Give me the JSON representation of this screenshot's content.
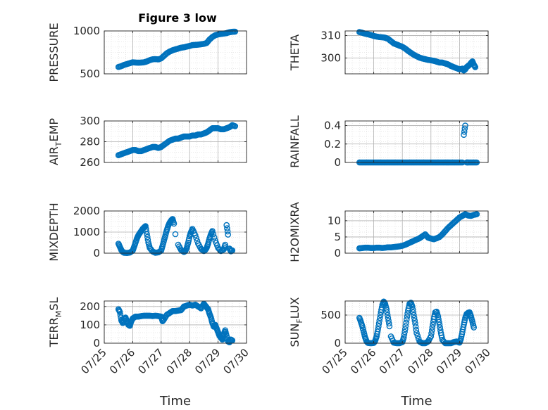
{
  "figure_title": "Figure 3 low",
  "colors": {
    "series": "#0072BD",
    "axis": "#262626",
    "grid": "#b0b0b0",
    "minor_grid": "#d6d6d6"
  },
  "chart_data": [
    {
      "type": "scatter",
      "ylabel": "PRESSURE",
      "ylabel_sub": "",
      "xlim": [
        0,
        5
      ],
      "ylim": [
        500,
        1000
      ],
      "yticks": [
        500,
        1000
      ],
      "xtick_labels": [],
      "xlabel": "",
      "grid": true,
      "x": [
        0.5,
        0.6,
        0.7,
        0.8,
        0.9,
        1.0,
        1.1,
        1.2,
        1.3,
        1.4,
        1.5,
        1.6,
        1.7,
        1.8,
        1.9,
        2.0,
        2.1,
        2.2,
        2.3,
        2.4,
        2.5,
        2.6,
        2.7,
        2.8,
        2.9,
        3.0,
        3.1,
        3.2,
        3.3,
        3.4,
        3.5,
        3.6,
        3.7,
        3.8,
        3.9,
        4.0,
        4.1,
        4.2,
        4.3,
        4.4,
        4.5,
        4.6
      ],
      "y": [
        580,
        590,
        605,
        615,
        625,
        635,
        632,
        630,
        632,
        635,
        645,
        660,
        670,
        672,
        668,
        680,
        710,
        740,
        760,
        775,
        785,
        795,
        805,
        810,
        818,
        825,
        835,
        838,
        840,
        845,
        850,
        860,
        900,
        930,
        950,
        960,
        965,
        970,
        975,
        985,
        990,
        992
      ]
    },
    {
      "type": "scatter",
      "ylabel": "THETA",
      "ylabel_sub": "",
      "xlim": [
        0,
        5
      ],
      "ylim": [
        293,
        312
      ],
      "yticks": [
        300,
        310
      ],
      "xtick_labels": [],
      "xlabel": "",
      "grid": true,
      "x": [
        0.5,
        0.6,
        0.7,
        0.8,
        0.9,
        1.0,
        1.1,
        1.2,
        1.3,
        1.4,
        1.5,
        1.6,
        1.7,
        1.8,
        1.9,
        2.0,
        2.1,
        2.2,
        2.3,
        2.4,
        2.5,
        2.6,
        2.7,
        2.8,
        2.9,
        3.0,
        3.1,
        3.2,
        3.3,
        3.4,
        3.5,
        3.6,
        3.7,
        3.8,
        3.9,
        4.0,
        4.1,
        4.15,
        4.2,
        4.25,
        4.3,
        4.35,
        4.4,
        4.45,
        4.5,
        4.55
      ],
      "y": [
        311.5,
        311.2,
        310.8,
        310.5,
        310.2,
        309.8,
        309.5,
        309.3,
        309.2,
        309.0,
        308.5,
        307.5,
        306.5,
        306.0,
        305.5,
        305.0,
        304.2,
        303.2,
        302.3,
        301.5,
        300.8,
        300.2,
        299.8,
        299.5,
        299.2,
        299.0,
        298.8,
        298.4,
        298.0,
        298.0,
        297.6,
        297.2,
        296.5,
        296.0,
        295.5,
        295.0,
        295.3,
        294.5,
        295.0,
        296.0,
        296.5,
        297.0,
        297.8,
        298.5,
        297.0,
        296.0
      ]
    },
    {
      "type": "scatter",
      "ylabel": "AIR",
      "ylabel_sub": "T",
      "ylabel_tail": "EMP",
      "xlim": [
        0,
        5
      ],
      "ylim": [
        260,
        300
      ],
      "yticks": [
        260,
        280,
        300
      ],
      "xtick_labels": [],
      "xlabel": "",
      "grid": true,
      "x": [
        0.5,
        0.6,
        0.7,
        0.8,
        0.9,
        1.0,
        1.1,
        1.2,
        1.3,
        1.4,
        1.5,
        1.6,
        1.7,
        1.8,
        1.9,
        2.0,
        2.1,
        2.2,
        2.3,
        2.4,
        2.5,
        2.6,
        2.7,
        2.8,
        2.9,
        3.0,
        3.1,
        3.2,
        3.3,
        3.4,
        3.5,
        3.6,
        3.7,
        3.8,
        3.9,
        4.0,
        4.1,
        4.2,
        4.3,
        4.4,
        4.5,
        4.6
      ],
      "y": [
        267,
        268,
        269,
        270,
        271,
        272,
        272,
        271,
        271,
        272,
        273,
        274,
        275,
        275,
        274,
        275,
        277,
        279,
        281,
        282,
        283,
        283,
        284,
        285,
        285,
        285,
        286,
        286,
        287,
        287,
        288,
        289,
        291,
        293,
        293,
        293,
        292,
        292,
        293,
        294,
        296,
        295
      ]
    },
    {
      "type": "scatter",
      "ylabel": "RAINFALL",
      "ylabel_sub": "",
      "xlim": [
        0,
        5
      ],
      "ylim": [
        0,
        0.45
      ],
      "yticks": [
        0,
        0.2,
        0.4
      ],
      "xtick_labels": [],
      "xlabel": "",
      "grid": true,
      "x": [
        0.5,
        0.6,
        0.7,
        0.8,
        0.9,
        1.0,
        1.1,
        1.2,
        1.3,
        1.4,
        1.5,
        1.6,
        1.7,
        1.8,
        1.9,
        2.0,
        2.1,
        2.2,
        2.3,
        2.4,
        2.5,
        2.6,
        2.7,
        2.8,
        2.9,
        3.0,
        3.1,
        3.2,
        3.3,
        3.4,
        3.5,
        3.6,
        3.7,
        3.8,
        3.9,
        4.0,
        4.1,
        4.15,
        4.2,
        4.25,
        4.3,
        4.4,
        4.5,
        4.6
      ],
      "y": [
        0,
        0,
        0,
        0,
        0,
        0,
        0,
        0,
        0,
        0,
        0,
        0,
        0,
        0,
        0,
        0,
        0,
        0,
        0,
        0,
        0,
        0,
        0,
        0,
        0,
        0,
        0,
        0,
        0,
        0,
        0,
        0,
        0,
        0,
        0,
        0,
        0,
        0.3,
        0.4,
        0,
        0,
        0,
        0,
        0
      ]
    },
    {
      "type": "scatter",
      "ylabel": "MIXDEPTH",
      "ylabel_sub": "",
      "xlim": [
        0,
        5
      ],
      "ylim": [
        0,
        2000
      ],
      "yticks": [
        0,
        1000,
        2000
      ],
      "xtick_labels": [],
      "xlabel": "",
      "grid": true,
      "x": [
        0.5,
        0.55,
        0.6,
        0.65,
        0.7,
        0.8,
        0.9,
        1.0,
        1.05,
        1.1,
        1.15,
        1.2,
        1.25,
        1.3,
        1.35,
        1.4,
        1.45,
        1.5,
        1.55,
        1.6,
        1.7,
        1.8,
        1.9,
        2.0,
        2.05,
        2.1,
        2.15,
        2.2,
        2.25,
        2.3,
        2.35,
        2.4,
        2.45,
        2.5,
        2.6,
        2.7,
        2.8,
        2.85,
        2.9,
        2.95,
        3.0,
        3.05,
        3.1,
        3.2,
        3.3,
        3.4,
        3.5,
        3.55,
        3.6,
        3.65,
        3.7,
        3.75,
        3.8,
        3.9,
        4.0,
        4.1,
        4.2,
        4.25,
        4.3,
        4.35,
        4.4,
        4.45,
        4.5
      ],
      "y": [
        450,
        300,
        150,
        60,
        20,
        10,
        30,
        120,
        300,
        500,
        700,
        850,
        950,
        1050,
        1150,
        1220,
        1280,
        900,
        500,
        250,
        80,
        20,
        40,
        120,
        350,
        600,
        850,
        1100,
        1300,
        1450,
        1550,
        1620,
        1400,
        900,
        400,
        150,
        60,
        100,
        250,
        500,
        800,
        1000,
        1150,
        850,
        450,
        200,
        100,
        150,
        250,
        450,
        700,
        900,
        1050,
        600,
        250,
        100,
        180,
        400,
        1330,
        880,
        220,
        90,
        130
      ]
    },
    {
      "type": "scatter",
      "ylabel": "H2OMIXRA",
      "ylabel_sub": "",
      "xlim": [
        0,
        5
      ],
      "ylim": [
        0,
        13
      ],
      "yticks": [
        0,
        5,
        10
      ],
      "xtick_labels": [],
      "xlabel": "",
      "grid": true,
      "x": [
        0.5,
        0.6,
        0.7,
        0.8,
        0.9,
        1.0,
        1.1,
        1.2,
        1.3,
        1.4,
        1.5,
        1.6,
        1.7,
        1.8,
        1.9,
        2.0,
        2.1,
        2.2,
        2.3,
        2.4,
        2.5,
        2.6,
        2.7,
        2.8,
        2.9,
        3.0,
        3.1,
        3.2,
        3.3,
        3.4,
        3.5,
        3.6,
        3.7,
        3.8,
        3.9,
        4.0,
        4.1,
        4.2,
        4.3,
        4.4,
        4.5,
        4.6
      ],
      "y": [
        1.5,
        1.6,
        1.7,
        1.7,
        1.6,
        1.6,
        1.7,
        1.7,
        1.6,
        1.7,
        1.8,
        1.8,
        1.9,
        2.0,
        2.1,
        2.3,
        2.6,
        3.0,
        3.4,
        3.8,
        4.2,
        4.6,
        5.2,
        5.8,
        4.8,
        4.5,
        4.3,
        4.6,
        5.0,
        5.8,
        6.8,
        7.8,
        8.6,
        9.4,
        10.2,
        11.0,
        11.5,
        12.0,
        11.6,
        11.5,
        11.8,
        12.0
      ]
    },
    {
      "type": "scatter",
      "ylabel": "TERR",
      "ylabel_sub": "M",
      "ylabel_tail": "SL",
      "xlim": [
        0,
        5
      ],
      "ylim": [
        0,
        230
      ],
      "yticks": [
        0,
        100,
        200
      ],
      "xtick_labels": [
        "07/25",
        "07/26",
        "07/27",
        "07/28",
        "07/29",
        "07/30"
      ],
      "xlabel": "Time",
      "grid": true,
      "x": [
        0.5,
        0.55,
        0.6,
        0.65,
        0.7,
        0.75,
        0.8,
        0.85,
        0.9,
        0.95,
        1.0,
        1.05,
        1.1,
        1.2,
        1.3,
        1.4,
        1.5,
        1.6,
        1.7,
        1.8,
        1.9,
        2.0,
        2.05,
        2.1,
        2.2,
        2.3,
        2.4,
        2.5,
        2.6,
        2.7,
        2.8,
        2.9,
        3.0,
        3.1,
        3.2,
        3.3,
        3.4,
        3.5,
        3.55,
        3.6,
        3.65,
        3.7,
        3.75,
        3.8,
        3.85,
        3.9,
        3.95,
        4.0,
        4.05,
        4.1,
        4.15,
        4.2,
        4.25,
        4.3,
        4.35,
        4.4,
        4.45,
        4.5
      ],
      "y": [
        185,
        170,
        125,
        110,
        130,
        140,
        115,
        100,
        95,
        120,
        135,
        140,
        145,
        145,
        148,
        150,
        150,
        150,
        148,
        150,
        148,
        145,
        120,
        130,
        155,
        165,
        175,
        175,
        178,
        180,
        200,
        205,
        210,
        205,
        210,
        200,
        190,
        215,
        205,
        195,
        185,
        160,
        140,
        110,
        90,
        100,
        80,
        60,
        40,
        30,
        20,
        50,
        70,
        40,
        10,
        5,
        20,
        15
      ]
    },
    {
      "type": "scatter",
      "ylabel": "SUN",
      "ylabel_sub": "F",
      "ylabel_tail": "LUX",
      "xlim": [
        0,
        5
      ],
      "ylim": [
        0,
        750
      ],
      "yticks": [
        0,
        500
      ],
      "xtick_labels": [
        "07/25",
        "07/26",
        "07/27",
        "07/28",
        "07/29",
        "07/30"
      ],
      "xlabel": "Time",
      "grid": true,
      "x": [
        0.5,
        0.55,
        0.6,
        0.65,
        0.7,
        0.75,
        0.8,
        0.9,
        1.0,
        1.05,
        1.1,
        1.15,
        1.2,
        1.25,
        1.3,
        1.35,
        1.4,
        1.45,
        1.5,
        1.55,
        1.6,
        1.7,
        1.8,
        1.9,
        2.0,
        2.05,
        2.1,
        2.15,
        2.2,
        2.25,
        2.3,
        2.35,
        2.4,
        2.45,
        2.5,
        2.6,
        2.7,
        2.8,
        2.9,
        3.0,
        3.05,
        3.1,
        3.15,
        3.2,
        3.25,
        3.3,
        3.35,
        3.4,
        3.5,
        3.6,
        3.7,
        3.8,
        3.9,
        4.0,
        4.05,
        4.1,
        4.15,
        4.2,
        4.25,
        4.3,
        4.35,
        4.4,
        4.45,
        4.5
      ],
      "y": [
        450,
        380,
        300,
        200,
        100,
        30,
        5,
        0,
        5,
        40,
        120,
        250,
        400,
        550,
        680,
        740,
        700,
        600,
        450,
        300,
        120,
        10,
        0,
        0,
        20,
        100,
        250,
        420,
        580,
        700,
        720,
        650,
        500,
        350,
        180,
        30,
        0,
        0,
        30,
        120,
        280,
        430,
        550,
        560,
        470,
        330,
        180,
        60,
        0,
        0,
        0,
        20,
        30,
        10,
        80,
        200,
        330,
        450,
        520,
        540,
        550,
        480,
        380,
        280
      ]
    }
  ]
}
